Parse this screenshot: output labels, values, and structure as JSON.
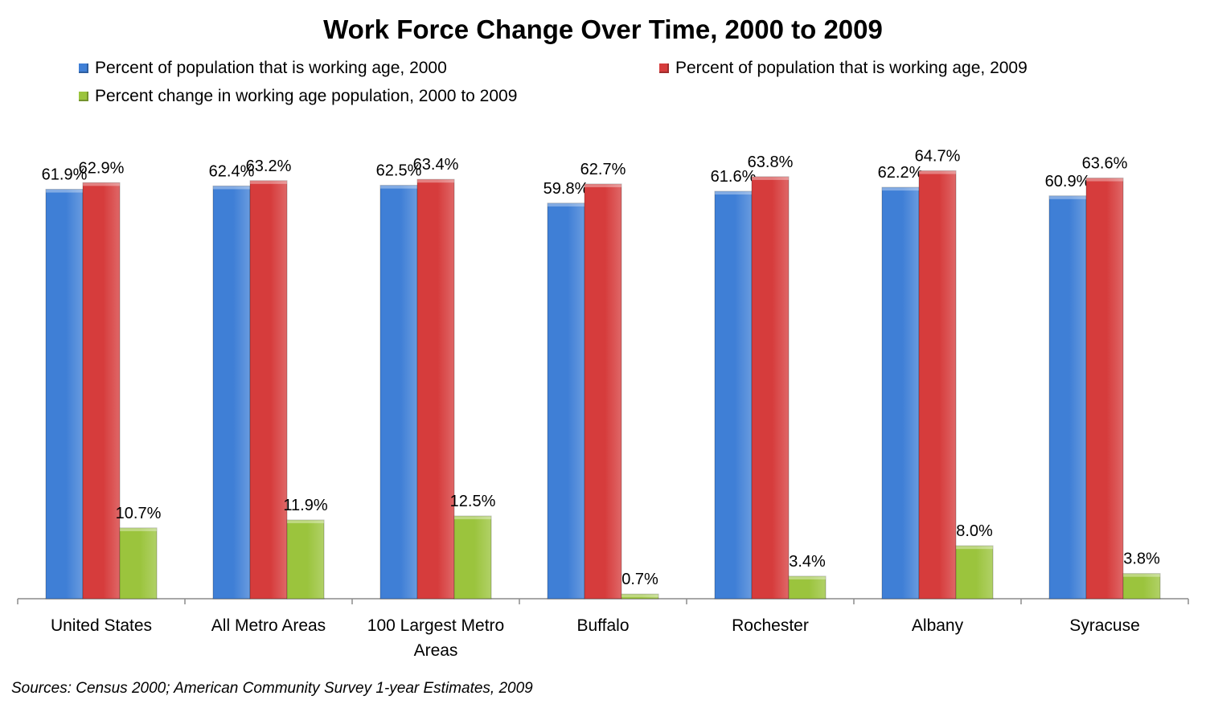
{
  "chart_data": {
    "type": "bar",
    "title": "Work Force Change Over Time, 2000 to 2009",
    "categories": [
      [
        "United States"
      ],
      [
        "All Metro Areas"
      ],
      [
        "100 Largest Metro",
        "Areas"
      ],
      [
        "Buffalo"
      ],
      [
        "Rochester"
      ],
      [
        "Albany"
      ],
      [
        "Syracuse"
      ]
    ],
    "series": [
      {
        "name": "Percent of population that is working age, 2000",
        "color": "#3f7fd6",
        "values": [
          61.9,
          62.4,
          62.5,
          59.8,
          61.6,
          62.2,
          60.9
        ],
        "labels": [
          "61.9%",
          "62.4%",
          "62.5%",
          "59.8%",
          "61.6%",
          "62.2%",
          "60.9%"
        ]
      },
      {
        "name": "Percent of population that is working age, 2009",
        "color": "#d63c3c",
        "values": [
          62.9,
          63.2,
          63.4,
          62.7,
          63.8,
          64.7,
          63.6
        ],
        "labels": [
          "62.9%",
          "63.2%",
          "63.4%",
          "62.7%",
          "63.8%",
          "64.7%",
          "63.6%"
        ]
      },
      {
        "name": "Percent change in working age population, 2000 to 2009",
        "color": "#9bc43d",
        "values": [
          10.7,
          11.9,
          12.5,
          0.7,
          3.4,
          8.0,
          3.8
        ],
        "labels": [
          "10.7%",
          "11.9%",
          "12.5%",
          "0.7%",
          "3.4%",
          "8.0%",
          "3.8%"
        ]
      }
    ],
    "ylim": [
      0,
      66
    ],
    "legend": "top",
    "grid": false
  },
  "source_note": "Sources: Census 2000; American Community Survey 1-year Estimates, 2009"
}
